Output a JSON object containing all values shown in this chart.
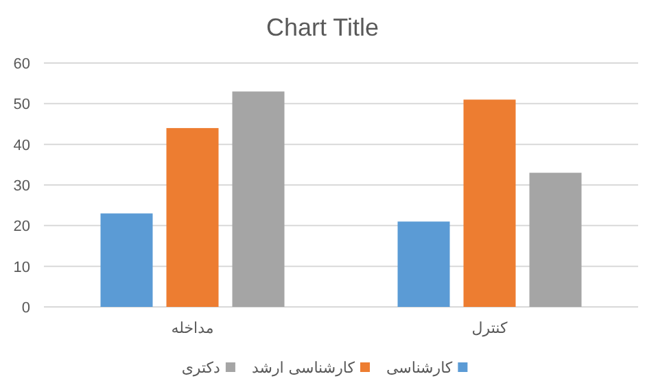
{
  "chart_data": {
    "type": "bar",
    "title": "Chart Title",
    "categories": [
      "مداخله",
      "کنترل"
    ],
    "series": [
      {
        "name": "کارشناسی",
        "color": "#5b9bd5",
        "values": [
          23,
          21
        ]
      },
      {
        "name": "کارشناسی ارشد",
        "color": "#ed7d31",
        "values": [
          44,
          51
        ]
      },
      {
        "name": "دکتری",
        "color": "#a5a5a5",
        "values": [
          53,
          33
        ]
      }
    ],
    "ylim": [
      0,
      60
    ],
    "yticks": [
      0,
      10,
      20,
      30,
      40,
      50,
      60
    ],
    "grid": "y",
    "legend": "bottom"
  }
}
